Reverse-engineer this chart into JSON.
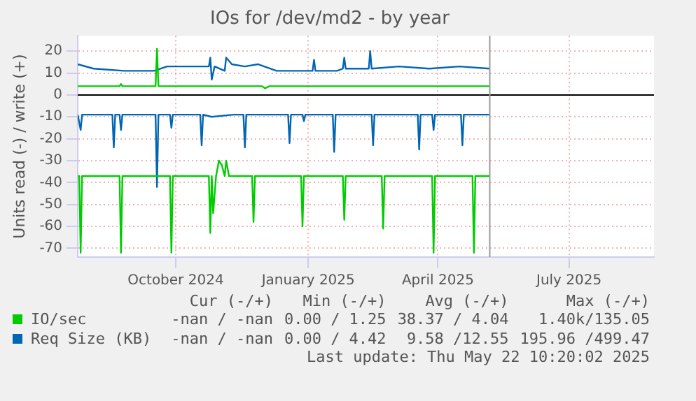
{
  "chart_data": {
    "type": "line",
    "title": "IOs for /dev/md2 - by year",
    "ylabel": "Units read (-) / write (+)",
    "xlim": [
      "2024-08-09",
      "2025-09-13"
    ],
    "ylim": [
      -74,
      27
    ],
    "xticks": [
      {
        "value": "2024-10-16",
        "label": "October 2024"
      },
      {
        "value": "2025-01-16",
        "label": "January 2025"
      },
      {
        "value": "2025-04-16",
        "label": "April 2025"
      },
      {
        "value": "2025-07-16",
        "label": "July 2025"
      }
    ],
    "yticks": [
      -70,
      -60,
      -50,
      -40,
      -30,
      -20,
      -10,
      0,
      10,
      20
    ],
    "grid": true,
    "legend": "bottom",
    "marker": "none",
    "line_style": "solid",
    "ref_lines": [
      {
        "axis": "y",
        "value": 0,
        "color": "#000000"
      },
      {
        "axis": "x",
        "value": "2025-05-22",
        "color": "#999999"
      }
    ],
    "series": [
      {
        "name": "IO/sec",
        "color": "#00cc00",
        "x": [
          "2024-08-09",
          "2024-09-07",
          "2024-09-08",
          "2024-09-09",
          "2024-10-02",
          "2024-10-03",
          "2024-10-04",
          "2024-12-15",
          "2024-12-17",
          "2024-12-20",
          "2025-05-22"
        ],
        "values": [
          4,
          4,
          5,
          4,
          4,
          21,
          4,
          4,
          3,
          4,
          4
        ]
      },
      {
        "color": "#00cc00",
        "x": [
          "2024-08-09",
          "2024-08-10",
          "2024-08-11",
          "2024-08-12",
          "2024-09-07",
          "2024-09-08",
          "2024-09-09",
          "2024-10-12",
          "2024-10-13",
          "2024-10-14",
          "2024-11-08",
          "2024-11-09",
          "2024-11-10",
          "2024-11-11",
          "2024-11-13",
          "2024-11-15",
          "2024-11-17",
          "2024-11-19",
          "2024-11-20",
          "2024-11-22",
          "2024-12-08",
          "2024-12-09",
          "2024-12-10",
          "2025-01-11",
          "2025-01-12",
          "2025-01-13",
          "2025-02-09",
          "2025-02-10",
          "2025-02-11",
          "2025-03-08",
          "2025-03-09",
          "2025-03-10",
          "2025-04-12",
          "2025-04-13",
          "2025-04-14",
          "2025-05-10",
          "2025-05-11",
          "2025-05-12",
          "2025-05-22"
        ],
        "values": [
          -37,
          -37,
          -72,
          -37,
          -37,
          -72,
          -37,
          -37,
          -72,
          -37,
          -37,
          -63,
          -37,
          -54,
          -37,
          -30,
          -32,
          -37,
          -30,
          -37,
          -37,
          -58,
          -37,
          -37,
          -60,
          -37,
          -37,
          -57,
          -37,
          -37,
          -61,
          -37,
          -37,
          -72,
          -37,
          -37,
          -72,
          -37,
          -37
        ]
      },
      {
        "name": "Req Size (KB)",
        "color": "#0066b3",
        "x": [
          "2024-08-09",
          "2024-08-20",
          "2024-09-10",
          "2024-10-01",
          "2024-10-10",
          "2024-10-25",
          "2024-11-08",
          "2024-11-09",
          "2024-11-10",
          "2024-11-12",
          "2024-11-19",
          "2024-11-20",
          "2024-11-24",
          "2024-12-03",
          "2024-12-12",
          "2024-12-25",
          "2025-01-10",
          "2025-01-19",
          "2025-01-20",
          "2025-01-21",
          "2025-02-05",
          "2025-02-09",
          "2025-02-10",
          "2025-02-11",
          "2025-02-27",
          "2025-02-28",
          "2025-03-01",
          "2025-03-20",
          "2025-04-10",
          "2025-05-01",
          "2025-05-22"
        ],
        "values": [
          14,
          12,
          11,
          11,
          13,
          13,
          13,
          17,
          7,
          13,
          11,
          17,
          14,
          13,
          14,
          11,
          11,
          11,
          16,
          11,
          11,
          12,
          17,
          12,
          12,
          20,
          12,
          13,
          12,
          13,
          12
        ]
      },
      {
        "color": "#0066b3",
        "x": [
          "2024-08-09",
          "2024-08-11",
          "2024-08-12",
          "2024-09-02",
          "2024-09-03",
          "2024-09-04",
          "2024-09-07",
          "2024-09-08",
          "2024-09-09",
          "2024-10-02",
          "2024-10-03",
          "2024-10-04",
          "2024-10-12",
          "2024-10-13",
          "2024-10-14",
          "2024-11-02",
          "2024-11-03",
          "2024-11-04",
          "2024-11-10",
          "2024-11-25",
          "2024-12-02",
          "2024-12-03",
          "2024-12-04",
          "2025-01-02",
          "2025-01-03",
          "2025-01-04",
          "2025-01-12",
          "2025-01-13",
          "2025-01-14",
          "2025-02-02",
          "2025-02-03",
          "2025-02-04",
          "2025-03-01",
          "2025-03-02",
          "2025-03-03",
          "2025-04-02",
          "2025-04-03",
          "2025-04-04",
          "2025-04-12",
          "2025-04-13",
          "2025-04-14",
          "2025-05-02",
          "2025-05-03",
          "2025-05-04",
          "2025-05-22"
        ],
        "values": [
          -9,
          -16,
          -9,
          -9,
          -24,
          -9,
          -9,
          -16,
          -9,
          -9,
          -42,
          -9,
          -9,
          -15,
          -9,
          -9,
          -23,
          -9,
          -10,
          -9,
          -9,
          -24,
          -9,
          -9,
          -22,
          -9,
          -9,
          -12,
          -9,
          -9,
          -26,
          -9,
          -9,
          -23,
          -9,
          -9,
          -25,
          -9,
          -9,
          -16,
          -9,
          -9,
          -23,
          -9,
          -9
        ]
      }
    ],
    "annotations": [
      "Cur (-/+)",
      "Min (-/+)",
      "Avg (-/+)",
      "Max (-/+)",
      "-nan / -nan",
      "0.00 / 1.25",
      "38.37 / 4.04",
      "1.40k/135.05",
      "-nan / -nan",
      "0.00 / 4.42",
      "9.58 /12.55",
      "195.96 /499.47",
      "Last update: Thu May 22 10:20:02 2025"
    ]
  }
}
